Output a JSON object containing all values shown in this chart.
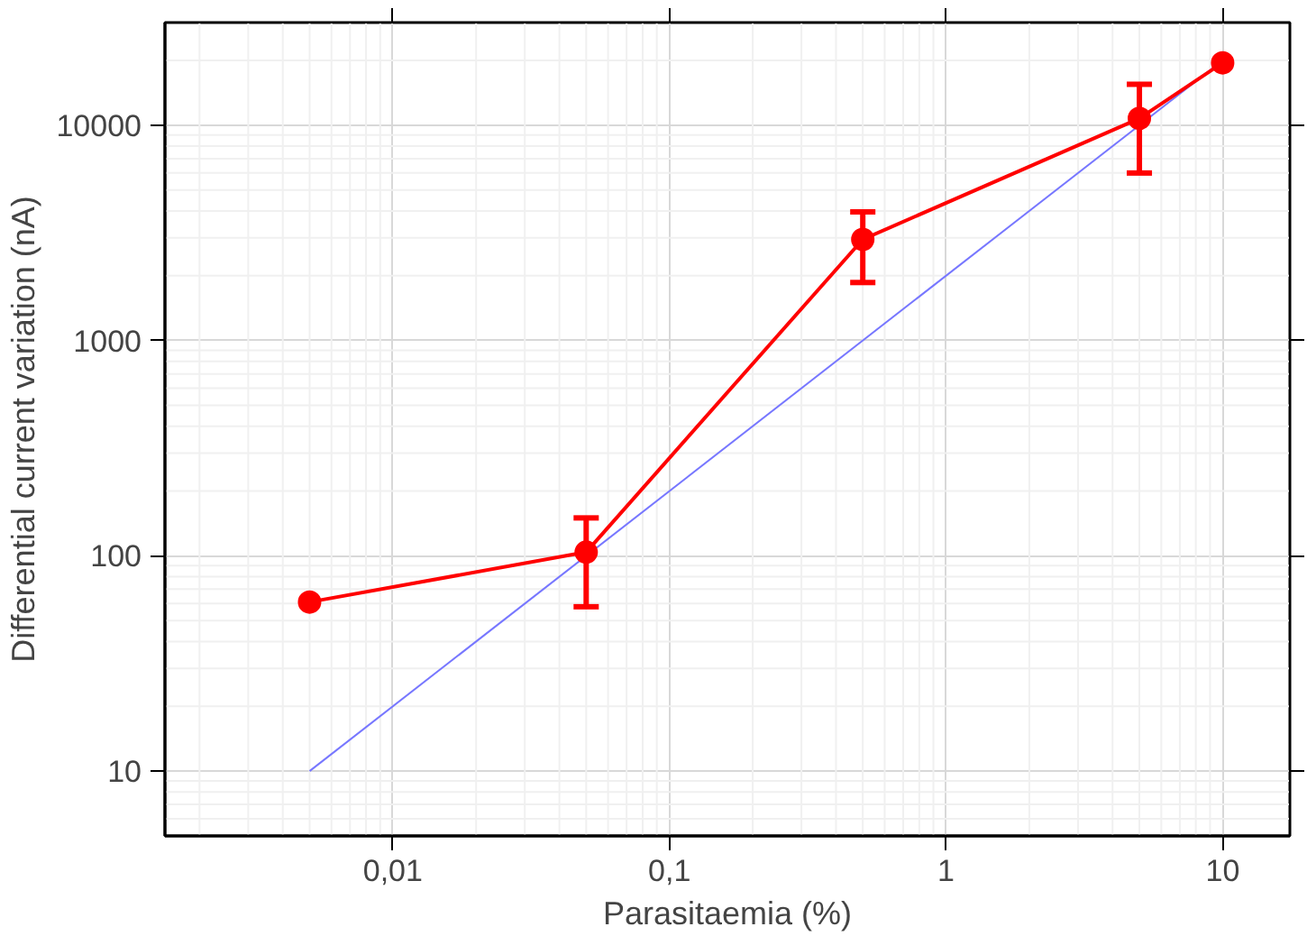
{
  "chart_data": {
    "type": "line",
    "xlabel": "Parasitaemia (%)",
    "ylabel": "Differential current variation (nA)",
    "log": "xy",
    "grid": true,
    "marker": "circle",
    "line_style": "solid",
    "xlim": [
      0.0015,
      17.5
    ],
    "ylim": [
      5,
      30000
    ],
    "xticks": [
      {
        "value": 0.01,
        "label": "0,01"
      },
      {
        "value": 0.1,
        "label": "0,1"
      },
      1,
      10
    ],
    "yticks": [
      10,
      100,
      1000,
      10000
    ],
    "x": [
      0.005,
      0.05,
      0.5,
      5,
      10
    ],
    "series": [
      {
        "color": "#ff0000",
        "values": [
          61,
          104,
          2950,
          10760,
          19500
        ],
        "errors": [
          null,
          [
            58,
            150
          ],
          [
            1860,
            3960
          ],
          [
            6000,
            15500
          ],
          null
        ]
      },
      {
        "type": "line",
        "color": "#7777ff",
        "marker": "none",
        "x": [
          0.005,
          10
        ],
        "values": [
          10,
          20000
        ]
      }
    ]
  }
}
